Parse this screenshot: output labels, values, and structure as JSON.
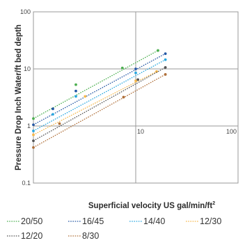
{
  "chart_data": {
    "type": "line",
    "xlabel": "Superficial velocity US gal/min/ft",
    "xlabel_superscript": "2",
    "ylabel": "Pressure Drop Inch Water/ft bed depth",
    "x_scale": "log",
    "y_scale": "log",
    "xlim": [
      1,
      100
    ],
    "ylim": [
      0.1,
      100
    ],
    "x_ticks": [
      {
        "value": 10,
        "label": "10"
      },
      {
        "value": 100,
        "label": "100"
      }
    ],
    "y_ticks": [
      {
        "value": 0.1,
        "label": "0.1"
      },
      {
        "value": 1,
        "label": "1"
      },
      {
        "value": 10,
        "label": "10"
      },
      {
        "value": 100,
        "label": "100"
      }
    ],
    "grid": true,
    "legend_position": "bottom",
    "series": [
      {
        "name": "20/50",
        "color": "#4caf50",
        "x": [
          1,
          2.6,
          7.4,
          16.5
        ],
        "y": [
          1.35,
          5.3,
          10.4,
          21
        ]
      },
      {
        "name": "16/45",
        "color": "#2457a4",
        "x": [
          1,
          1.55,
          2.6,
          10,
          19.5
        ],
        "y": [
          1.05,
          2.0,
          4.1,
          10,
          18.5
        ]
      },
      {
        "name": "14/40",
        "color": "#29a8e0",
        "x": [
          1,
          1.55,
          2.6,
          10,
          19.5
        ],
        "y": [
          0.82,
          1.6,
          3.3,
          8.5,
          14.5
        ]
      },
      {
        "name": "12/30",
        "color": "#f5b74a",
        "x": [
          1,
          3.2,
          10,
          16
        ],
        "y": [
          0.7,
          3.3,
          6.2,
          9.0
        ]
      },
      {
        "name": "12/20",
        "color": "#555555",
        "x": [
          1,
          10.5,
          19.5
        ],
        "y": [
          0.55,
          6.5,
          10.6
        ]
      },
      {
        "name": "8/30",
        "color": "#b0703a",
        "x": [
          1,
          1.8,
          7.6,
          19.5
        ],
        "y": [
          0.42,
          1.1,
          3.2,
          8.0
        ]
      }
    ]
  }
}
